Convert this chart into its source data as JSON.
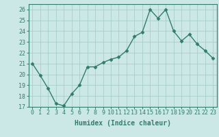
{
  "x": [
    0,
    1,
    2,
    3,
    4,
    5,
    6,
    7,
    8,
    9,
    10,
    11,
    12,
    13,
    14,
    15,
    16,
    17,
    18,
    19,
    20,
    21,
    22,
    23
  ],
  "y": [
    21.0,
    19.9,
    18.7,
    17.3,
    17.1,
    18.2,
    19.0,
    20.7,
    20.7,
    21.1,
    21.4,
    21.6,
    22.2,
    23.5,
    23.9,
    26.0,
    25.2,
    26.0,
    24.0,
    23.1,
    23.7,
    22.8,
    22.2,
    21.5
  ],
  "line_color": "#2e7d6e",
  "marker": "D",
  "markersize": 2.5,
  "linewidth": 1.0,
  "bg_color": "#cce8e6",
  "grid_color": "#a8cec9",
  "xlabel": "Humidex (Indice chaleur)",
  "tick_fontsize": 6,
  "xlabel_fontsize": 7,
  "ylim": [
    17,
    26.5
  ],
  "yticks": [
    17,
    18,
    19,
    20,
    21,
    22,
    23,
    24,
    25,
    26
  ],
  "xlim": [
    -0.5,
    23.5
  ]
}
